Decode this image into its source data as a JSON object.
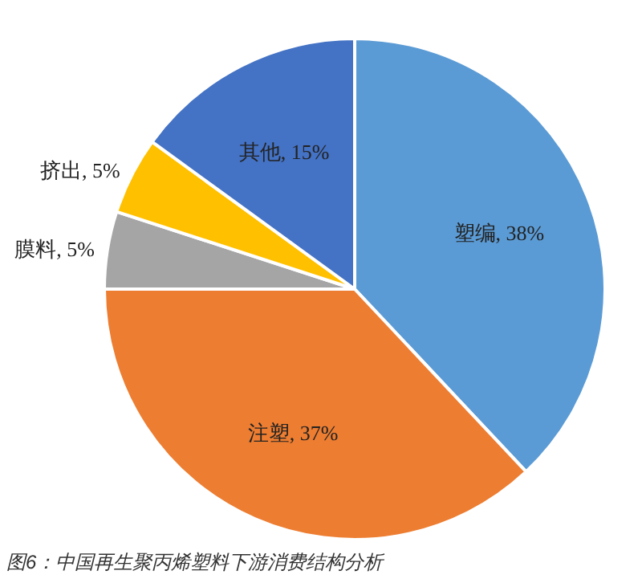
{
  "chart_data": {
    "type": "pie",
    "title": "图6：中国再生聚丙烯塑料下游消费结构分析",
    "categories": [
      "塑编",
      "注塑",
      "膜料",
      "挤出",
      "其他"
    ],
    "values": [
      38,
      37,
      5,
      5,
      15
    ],
    "colors": [
      "#5b9bd5",
      "#ed7d31",
      "#a5a5a5",
      "#ffc000",
      "#4472c4"
    ],
    "value_labels": [
      ", 38%",
      ", 37%",
      ", 5%",
      ", 5%",
      ", 15%"
    ]
  }
}
